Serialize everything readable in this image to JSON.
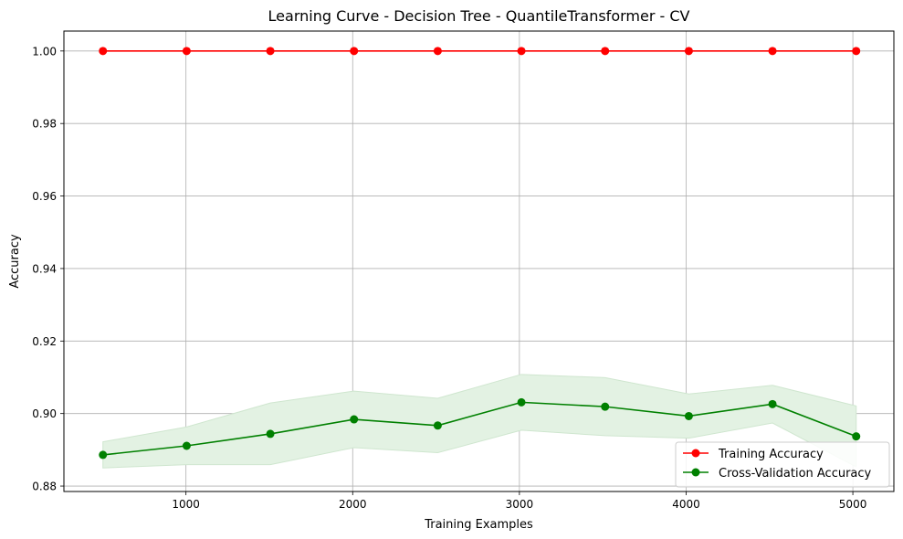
{
  "chart_data": {
    "type": "line",
    "title": "Learning Curve - Decision Tree - QuantileTransformer - CV",
    "xlabel": "Training Examples",
    "ylabel": "Accuracy",
    "xlim": [
      268,
      5246
    ],
    "ylim": [
      0.8785,
      1.0055
    ],
    "grid": true,
    "legend_position": "lower-right",
    "xticks": [
      1000,
      2000,
      3000,
      4000,
      5000
    ],
    "xtick_labels": [
      "1000",
      "2000",
      "3000",
      "4000",
      "5000"
    ],
    "yticks": [
      0.88,
      0.9,
      0.92,
      0.94,
      0.96,
      0.98,
      1.0
    ],
    "ytick_labels": [
      "0.88",
      "0.90",
      "0.92",
      "0.94",
      "0.96",
      "0.98",
      "1.00"
    ],
    "x": [
      502,
      1004,
      1506,
      2008,
      2510,
      3012,
      3514,
      4016,
      4518,
      5020
    ],
    "series": [
      {
        "name": "Training Accuracy",
        "color": "#ff0000",
        "values": [
          1.0,
          1.0,
          1.0,
          1.0,
          1.0,
          1.0,
          1.0,
          1.0,
          1.0,
          1.0
        ]
      },
      {
        "name": "Cross-Validation Accuracy",
        "color": "#008000",
        "band_color": "#e3f2e3",
        "values": [
          0.8886,
          0.8911,
          0.8944,
          0.8984,
          0.8967,
          0.9031,
          0.9019,
          0.8993,
          0.9026,
          0.8937
        ],
        "band_upper": [
          0.8922,
          0.8963,
          0.9029,
          0.9062,
          0.9042,
          0.9108,
          0.9099,
          0.9054,
          0.9078,
          0.9021
        ],
        "band_lower": [
          0.885,
          0.8859,
          0.8859,
          0.8906,
          0.8892,
          0.8954,
          0.8939,
          0.8932,
          0.8974,
          0.8853
        ]
      }
    ]
  }
}
